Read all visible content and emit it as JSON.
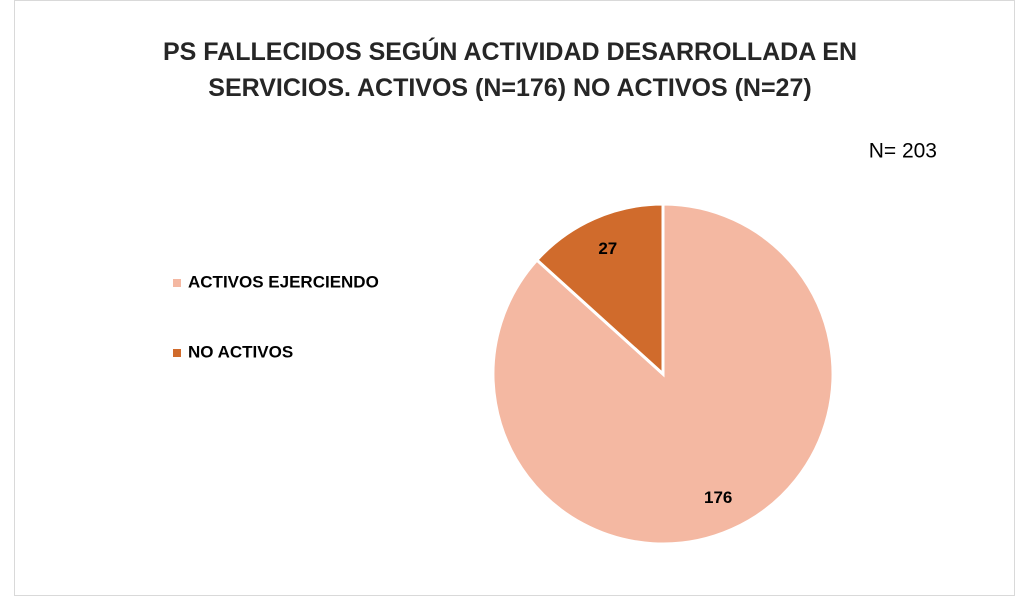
{
  "chart_data": {
    "type": "pie",
    "title": "PS FALLECIDOS SEGÚN ACTIVIDAD DESARROLLADA EN SERVICIOS. ACTIVOS (N=176) NO ACTIVOS (N=27)",
    "annotation": "N= 203",
    "categories": [
      "ACTIVOS EJERCIENDO",
      "NO ACTIVOS"
    ],
    "values": [
      176,
      27
    ],
    "colors": [
      "#f4b8a2",
      "#d06b2c"
    ],
    "legend": "left"
  }
}
